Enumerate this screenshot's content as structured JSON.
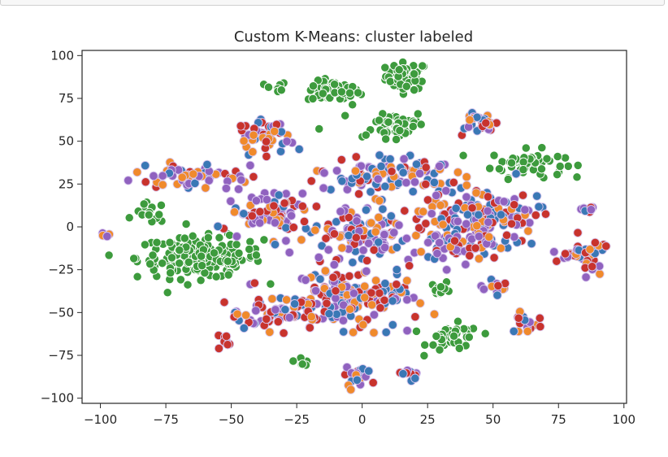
{
  "chart_data": {
    "type": "scatter",
    "title": "Custom K-Means: cluster labeled",
    "xlabel": "",
    "ylabel": "",
    "xlim": [
      -107,
      101
    ],
    "ylim": [
      -103,
      103
    ],
    "xticks": [
      -100,
      -75,
      -50,
      -25,
      0,
      25,
      50,
      75,
      100
    ],
    "yticks": [
      -100,
      -75,
      -50,
      -25,
      0,
      25,
      50,
      75,
      100
    ],
    "xtick_labels": [
      "−100",
      "−75",
      "−50",
      "−25",
      "0",
      "25",
      "50",
      "75",
      "100"
    ],
    "ytick_labels": [
      "−100",
      "−75",
      "−50",
      "−25",
      "0",
      "25",
      "50",
      "75",
      "100"
    ],
    "grid": false,
    "legend": "none",
    "colors": {
      "c0": "#3a78b5",
      "c1": "#f08a2c",
      "c2": "#3d9b3d",
      "c3": "#c8332d",
      "c4": "#9062bf",
      "edge": "#ffffff",
      "mixed_halo": "#d9c8ee"
    },
    "groups": [
      {
        "id": "g-top-green-a",
        "x": 17,
        "y": 88,
        "spread": [
          4,
          4
        ],
        "cluster": "c2",
        "count": 60
      },
      {
        "id": "g-top-green-b",
        "x": -11,
        "y": 79,
        "spread": [
          5,
          3
        ],
        "cluster": "c2",
        "count": 60
      },
      {
        "id": "g-top-green-c",
        "x": -33,
        "y": 81,
        "spread": [
          2,
          2
        ],
        "cluster": "c2",
        "count": 12
      },
      {
        "id": "g-green-mid",
        "x": 14,
        "y": 60,
        "spread": [
          5,
          4
        ],
        "cluster": "c2",
        "count": 40
      },
      {
        "id": "g-green-right",
        "x": 63,
        "y": 37,
        "spread": [
          7,
          4
        ],
        "cluster": "c2",
        "count": 60
      },
      {
        "id": "g-green-left-big",
        "x": -62,
        "y": -18,
        "spread": [
          12,
          6
        ],
        "cluster": "c2",
        "count": 180
      },
      {
        "id": "g-green-left-small",
        "x": -81,
        "y": 8,
        "spread": [
          3,
          3
        ],
        "cluster": "c2",
        "count": 16
      },
      {
        "id": "g-green-bot-a",
        "x": 35,
        "y": -65,
        "spread": [
          5,
          4
        ],
        "cluster": "c2",
        "count": 40
      },
      {
        "id": "g-green-bot-b",
        "x": 30,
        "y": -36,
        "spread": [
          2,
          2
        ],
        "cluster": "c2",
        "count": 10
      },
      {
        "id": "g-green-bot-c",
        "x": -23,
        "y": -78,
        "spread": [
          1.5,
          1.5
        ],
        "cluster": "c2",
        "count": 6
      },
      {
        "id": "g-upper-left-mixed",
        "x": -38,
        "y": 52,
        "spread": [
          5,
          6
        ],
        "mix": [
          "c0",
          "c1",
          "c3",
          "c4"
        ],
        "count": 50
      },
      {
        "id": "g-left-mixed",
        "x": -67,
        "y": 30,
        "spread": [
          10,
          4
        ],
        "mix": [
          "c3",
          "c0",
          "c1",
          "c4"
        ],
        "count": 60
      },
      {
        "id": "g-upper-right-mixed",
        "x": 45,
        "y": 62,
        "spread": [
          4,
          4
        ],
        "mix": [
          "c4",
          "c3",
          "c0",
          "c1"
        ],
        "count": 30
      },
      {
        "id": "g-center-top-mixed",
        "x": 10,
        "y": 30,
        "spread": [
          13,
          5
        ],
        "mix": [
          "c4",
          "c1",
          "c3",
          "c0"
        ],
        "count": 110
      },
      {
        "id": "g-center-mixed",
        "x": 0,
        "y": -3,
        "spread": [
          8,
          8
        ],
        "mix": [
          "c3",
          "c0",
          "c1",
          "c4"
        ],
        "count": 90
      },
      {
        "id": "g-left-center-mixed",
        "x": -35,
        "y": 8,
        "spread": [
          8,
          7
        ],
        "mix": [
          "c4",
          "c3",
          "c1",
          "c0"
        ],
        "count": 70
      },
      {
        "id": "g-right-mixed",
        "x": 43,
        "y": 5,
        "spread": [
          13,
          8
        ],
        "mix": [
          "c1",
          "c3",
          "c0",
          "c4"
        ],
        "count": 140
      },
      {
        "id": "g-right-lower-mixed",
        "x": 38,
        "y": -9,
        "spread": [
          9,
          5
        ],
        "mix": [
          "c0",
          "c1",
          "c3",
          "c4"
        ],
        "count": 60
      },
      {
        "id": "g-far-right-mixed",
        "x": 84,
        "y": -17,
        "spread": [
          4,
          5
        ],
        "mix": [
          "c3",
          "c0",
          "c1",
          "c4"
        ],
        "count": 40
      },
      {
        "id": "g-far-right-top",
        "x": 86,
        "y": 11,
        "spread": [
          2,
          2
        ],
        "mix": [
          "c0",
          "c3",
          "c4"
        ],
        "count": 8
      },
      {
        "id": "g-bottom-center-mixed",
        "x": -5,
        "y": -43,
        "spread": [
          12,
          8
        ],
        "mix": [
          "c3",
          "c0",
          "c4",
          "c1"
        ],
        "count": 180
      },
      {
        "id": "g-bottom-left-mixed",
        "x": -32,
        "y": -52,
        "spread": [
          8,
          5
        ],
        "mix": [
          "c1",
          "c3",
          "c0",
          "c4"
        ],
        "count": 60
      },
      {
        "id": "g-bottom-right-a",
        "x": 52,
        "y": -35,
        "spread": [
          3,
          2
        ],
        "mix": [
          "c0",
          "c3",
          "c1",
          "c4"
        ],
        "count": 14
      },
      {
        "id": "g-bottom-right-b",
        "x": 64,
        "y": -57,
        "spread": [
          3,
          3
        ],
        "mix": [
          "c1",
          "c3",
          "c0",
          "c4"
        ],
        "count": 16
      },
      {
        "id": "g-bottom-small-a",
        "x": -53,
        "y": -67,
        "spread": [
          2,
          2
        ],
        "mix": [
          "c3",
          "c0",
          "c4"
        ],
        "count": 10
      },
      {
        "id": "g-bottom-small-b",
        "x": -3,
        "y": -87,
        "spread": [
          3,
          3
        ],
        "mix": [
          "c0",
          "c3",
          "c1",
          "c4"
        ],
        "count": 20
      },
      {
        "id": "g-bottom-small-c",
        "x": 18,
        "y": -86,
        "spread": [
          2,
          1.5
        ],
        "mix": [
          "c3",
          "c4",
          "c0"
        ],
        "count": 10
      },
      {
        "id": "g-far-left-single",
        "x": -98,
        "y": -4,
        "spread": [
          1,
          1
        ],
        "mix": [
          "c1",
          "c4"
        ],
        "count": 4
      },
      {
        "id": "g-scatter-top-green",
        "x": -5,
        "y": 60,
        "spread": [
          14,
          9
        ],
        "cluster": "c2",
        "count": 10
      },
      {
        "id": "g-scatter-mid",
        "x": -15,
        "y": -12,
        "spread": [
          12,
          8
        ],
        "mix": [
          "c3",
          "c4",
          "c1",
          "c0"
        ],
        "count": 14
      }
    ]
  }
}
